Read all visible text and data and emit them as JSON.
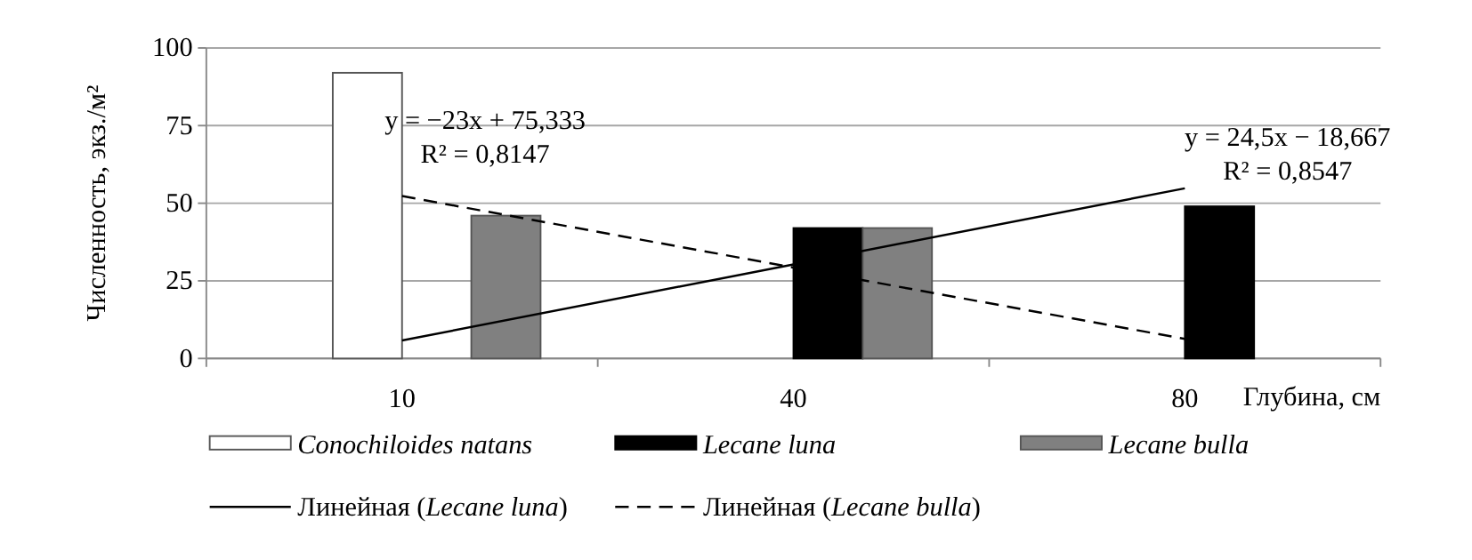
{
  "chart_data": {
    "type": "bar",
    "ylabel": "Численность, экз./м²",
    "xlabel": "Глубина, см",
    "categories": [
      "10",
      "40",
      "80"
    ],
    "ylim": [
      0,
      100
    ],
    "yticks": [
      0,
      25,
      50,
      75,
      100
    ],
    "grid": "y",
    "legend": "bottom",
    "series": [
      {
        "name": "Conochiloides natans",
        "color": "#ffffff",
        "values": [
          92,
          0,
          0
        ]
      },
      {
        "name": "Lecane luna",
        "color": "#000000",
        "values": [
          0,
          42,
          49
        ]
      },
      {
        "name": "Lecane bulla",
        "color": "#808080",
        "values": [
          46,
          42,
          0
        ]
      },
      {
        "name": "Линейная (Lecane luna)",
        "type": "line",
        "color": "#000000",
        "line_style": "solid",
        "values": [
          5.8,
          30.3,
          54.8
        ]
      },
      {
        "name": "Линейная (Lecane bulla)",
        "type": "line",
        "color": "#000000",
        "line_style": "dashed",
        "values": [
          52.3,
          29.3,
          6.3
        ]
      }
    ],
    "annotations": [
      "y = −23x + 75,333",
      "R² = 0,8147",
      "y = 24,5x − 18,667",
      "R² = 0,8547"
    ]
  }
}
